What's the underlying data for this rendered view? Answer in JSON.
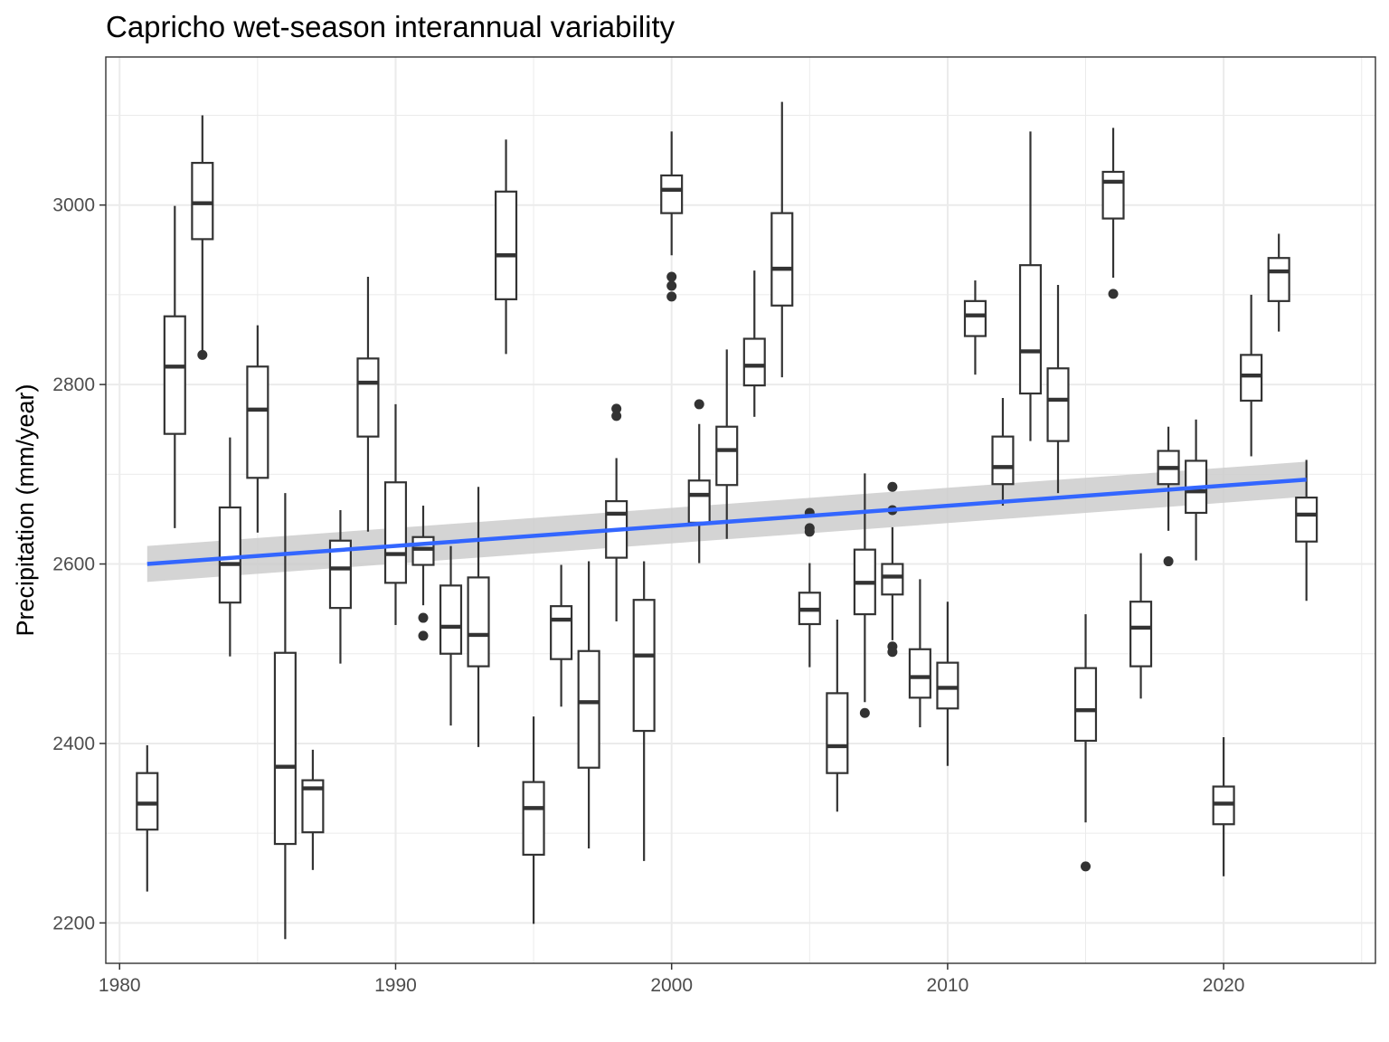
{
  "chart_data": {
    "type": "boxplot",
    "title": "Capricho wet-season interannual variability",
    "xlabel": "",
    "ylabel": "Precipitation (mm/year)",
    "xlim": [
      1979.5,
      2025.5
    ],
    "ylim": [
      2155,
      3165
    ],
    "x_ticks": [
      1980,
      1990,
      2000,
      2010,
      2020
    ],
    "y_ticks": [
      2200,
      2400,
      2600,
      2800,
      3000
    ],
    "grid": true,
    "colors": {
      "trend_line": "#3366ff",
      "ribbon": "#cccccc",
      "box_stroke": "#333333",
      "grid": "#ebebeb",
      "panel_border": "#333333"
    },
    "boxes": [
      {
        "year": 1981,
        "whisker_low": 2235,
        "q1": 2304,
        "median": 2333,
        "q3": 2367,
        "whisker_high": 2398,
        "outliers": []
      },
      {
        "year": 1982,
        "whisker_low": 2640,
        "q1": 2745,
        "median": 2820,
        "q3": 2876,
        "whisker_high": 2999,
        "outliers": []
      },
      {
        "year": 1983,
        "whisker_low": 2838,
        "q1": 2962,
        "median": 3002,
        "q3": 3047,
        "whisker_high": 3100,
        "outliers": [
          2833
        ]
      },
      {
        "year": 1984,
        "whisker_low": 2497,
        "q1": 2557,
        "median": 2600,
        "q3": 2663,
        "whisker_high": 2741,
        "outliers": []
      },
      {
        "year": 1985,
        "whisker_low": 2635,
        "q1": 2696,
        "median": 2772,
        "q3": 2820,
        "whisker_high": 2866,
        "outliers": []
      },
      {
        "year": 1986,
        "whisker_low": 2182,
        "q1": 2288,
        "median": 2374,
        "q3": 2501,
        "whisker_high": 2679,
        "outliers": []
      },
      {
        "year": 1987,
        "whisker_low": 2259,
        "q1": 2301,
        "median": 2350,
        "q3": 2359,
        "whisker_high": 2393,
        "outliers": []
      },
      {
        "year": 1988,
        "whisker_low": 2489,
        "q1": 2551,
        "median": 2595,
        "q3": 2626,
        "whisker_high": 2660,
        "outliers": []
      },
      {
        "year": 1989,
        "whisker_low": 2636,
        "q1": 2742,
        "median": 2802,
        "q3": 2829,
        "whisker_high": 2920,
        "outliers": []
      },
      {
        "year": 1990,
        "whisker_low": 2532,
        "q1": 2579,
        "median": 2611,
        "q3": 2691,
        "whisker_high": 2778,
        "outliers": []
      },
      {
        "year": 1991,
        "whisker_low": 2554,
        "q1": 2599,
        "median": 2617,
        "q3": 2630,
        "whisker_high": 2665,
        "outliers": [
          2540,
          2520
        ]
      },
      {
        "year": 1992,
        "whisker_low": 2420,
        "q1": 2500,
        "median": 2530,
        "q3": 2576,
        "whisker_high": 2620,
        "outliers": []
      },
      {
        "year": 1993,
        "whisker_low": 2396,
        "q1": 2486,
        "median": 2521,
        "q3": 2585,
        "whisker_high": 2686,
        "outliers": []
      },
      {
        "year": 1994,
        "whisker_low": 2834,
        "q1": 2895,
        "median": 2944,
        "q3": 3015,
        "whisker_high": 3073,
        "outliers": []
      },
      {
        "year": 1995,
        "whisker_low": 2199,
        "q1": 2276,
        "median": 2328,
        "q3": 2357,
        "whisker_high": 2430,
        "outliers": []
      },
      {
        "year": 1996,
        "whisker_low": 2441,
        "q1": 2494,
        "median": 2538,
        "q3": 2553,
        "whisker_high": 2599,
        "outliers": []
      },
      {
        "year": 1997,
        "whisker_low": 2283,
        "q1": 2373,
        "median": 2446,
        "q3": 2503,
        "whisker_high": 2603,
        "outliers": []
      },
      {
        "year": 1998,
        "whisker_low": 2536,
        "q1": 2607,
        "median": 2656,
        "q3": 2670,
        "whisker_high": 2718,
        "outliers": [
          2765,
          2773
        ]
      },
      {
        "year": 1999,
        "whisker_low": 2269,
        "q1": 2414,
        "median": 2498,
        "q3": 2560,
        "whisker_high": 2603,
        "outliers": []
      },
      {
        "year": 2000,
        "whisker_low": 2944,
        "q1": 2991,
        "median": 3017,
        "q3": 3033,
        "whisker_high": 3082,
        "outliers": [
          2920,
          2910,
          2898
        ]
      },
      {
        "year": 2001,
        "whisker_low": 2601,
        "q1": 2646,
        "median": 2677,
        "q3": 2693,
        "whisker_high": 2756,
        "outliers": [
          2778
        ]
      },
      {
        "year": 2002,
        "whisker_low": 2628,
        "q1": 2688,
        "median": 2727,
        "q3": 2753,
        "whisker_high": 2839,
        "outliers": []
      },
      {
        "year": 2003,
        "whisker_low": 2764,
        "q1": 2799,
        "median": 2821,
        "q3": 2851,
        "whisker_high": 2927,
        "outliers": []
      },
      {
        "year": 2004,
        "whisker_low": 2808,
        "q1": 2888,
        "median": 2929,
        "q3": 2991,
        "whisker_high": 3115,
        "outliers": []
      },
      {
        "year": 2005,
        "whisker_low": 2485,
        "q1": 2533,
        "median": 2549,
        "q3": 2568,
        "whisker_high": 2601,
        "outliers": [
          2657,
          2640,
          2636
        ]
      },
      {
        "year": 2006,
        "whisker_low": 2324,
        "q1": 2367,
        "median": 2397,
        "q3": 2456,
        "whisker_high": 2538,
        "outliers": []
      },
      {
        "year": 2007,
        "whisker_low": 2446,
        "q1": 2544,
        "median": 2579,
        "q3": 2616,
        "whisker_high": 2701,
        "outliers": [
          2434
        ]
      },
      {
        "year": 2008,
        "whisker_low": 2515,
        "q1": 2566,
        "median": 2586,
        "q3": 2600,
        "whisker_high": 2641,
        "outliers": [
          2686,
          2660,
          2508,
          2502
        ]
      },
      {
        "year": 2009,
        "whisker_low": 2418,
        "q1": 2451,
        "median": 2474,
        "q3": 2505,
        "whisker_high": 2583,
        "outliers": []
      },
      {
        "year": 2010,
        "whisker_low": 2375,
        "q1": 2439,
        "median": 2462,
        "q3": 2490,
        "whisker_high": 2558,
        "outliers": []
      },
      {
        "year": 2011,
        "whisker_low": 2811,
        "q1": 2854,
        "median": 2877,
        "q3": 2893,
        "whisker_high": 2916,
        "outliers": []
      },
      {
        "year": 2012,
        "whisker_low": 2665,
        "q1": 2689,
        "median": 2708,
        "q3": 2742,
        "whisker_high": 2785,
        "outliers": []
      },
      {
        "year": 2013,
        "whisker_low": 2737,
        "q1": 2790,
        "median": 2837,
        "q3": 2933,
        "whisker_high": 3082,
        "outliers": []
      },
      {
        "year": 2014,
        "whisker_low": 2679,
        "q1": 2737,
        "median": 2783,
        "q3": 2818,
        "whisker_high": 2911,
        "outliers": []
      },
      {
        "year": 2015,
        "whisker_low": 2312,
        "q1": 2403,
        "median": 2437,
        "q3": 2484,
        "whisker_high": 2544,
        "outliers": [
          2263
        ]
      },
      {
        "year": 2016,
        "whisker_low": 2919,
        "q1": 2985,
        "median": 3026,
        "q3": 3037,
        "whisker_high": 3086,
        "outliers": [
          2901
        ]
      },
      {
        "year": 2017,
        "whisker_low": 2450,
        "q1": 2486,
        "median": 2529,
        "q3": 2558,
        "whisker_high": 2612,
        "outliers": []
      },
      {
        "year": 2018,
        "whisker_low": 2637,
        "q1": 2689,
        "median": 2707,
        "q3": 2726,
        "whisker_high": 2753,
        "outliers": [
          2603
        ]
      },
      {
        "year": 2019,
        "whisker_low": 2604,
        "q1": 2657,
        "median": 2681,
        "q3": 2715,
        "whisker_high": 2761,
        "outliers": []
      },
      {
        "year": 2020,
        "whisker_low": 2252,
        "q1": 2310,
        "median": 2333,
        "q3": 2352,
        "whisker_high": 2407,
        "outliers": []
      },
      {
        "year": 2021,
        "whisker_low": 2720,
        "q1": 2782,
        "median": 2810,
        "q3": 2833,
        "whisker_high": 2900,
        "outliers": []
      },
      {
        "year": 2022,
        "whisker_low": 2859,
        "q1": 2893,
        "median": 2926,
        "q3": 2941,
        "whisker_high": 2968,
        "outliers": []
      },
      {
        "year": 2023,
        "whisker_low": 2559,
        "q1": 2625,
        "median": 2655,
        "q3": 2674,
        "whisker_high": 2716,
        "outliers": []
      }
    ],
    "trend": {
      "type": "linear fit with confidence band",
      "x": [
        1981,
        2023
      ],
      "y": [
        2600,
        2694
      ],
      "ci_low": [
        2580,
        2675
      ],
      "ci_high": [
        2620,
        2714
      ]
    }
  }
}
